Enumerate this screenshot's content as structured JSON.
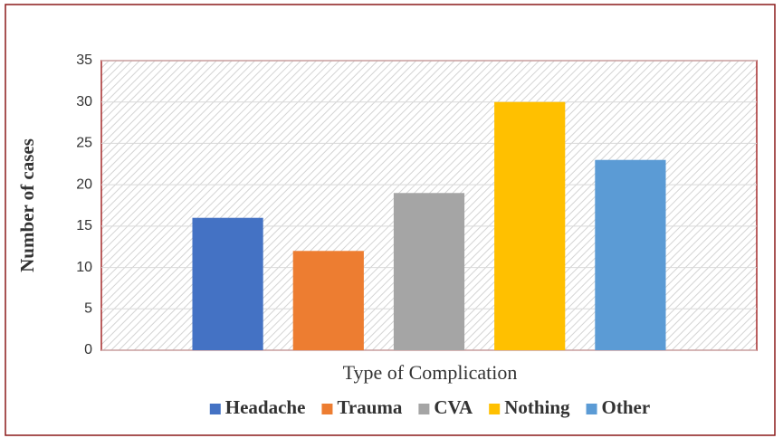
{
  "chart_data": {
    "type": "bar",
    "x_label": "Type of Complication",
    "y_label": "Number of cases",
    "categories": [
      null
    ],
    "series": [
      {
        "name": "Headache",
        "color": "#4472c4",
        "values": [
          16
        ]
      },
      {
        "name": "Trauma",
        "color": "#ed7d31",
        "values": [
          12
        ]
      },
      {
        "name": "CVA",
        "color": "#a5a5a5",
        "values": [
          19
        ]
      },
      {
        "name": "Nothing",
        "color": "#ffc000",
        "values": [
          30
        ]
      },
      {
        "name": "Other",
        "color": "#5b9bd5",
        "values": [
          23
        ]
      }
    ],
    "ylim": [
      0,
      35
    ],
    "yticks": [
      0,
      5,
      10,
      15,
      20,
      25,
      30,
      35
    ],
    "grid": true,
    "legend": "bottom"
  }
}
